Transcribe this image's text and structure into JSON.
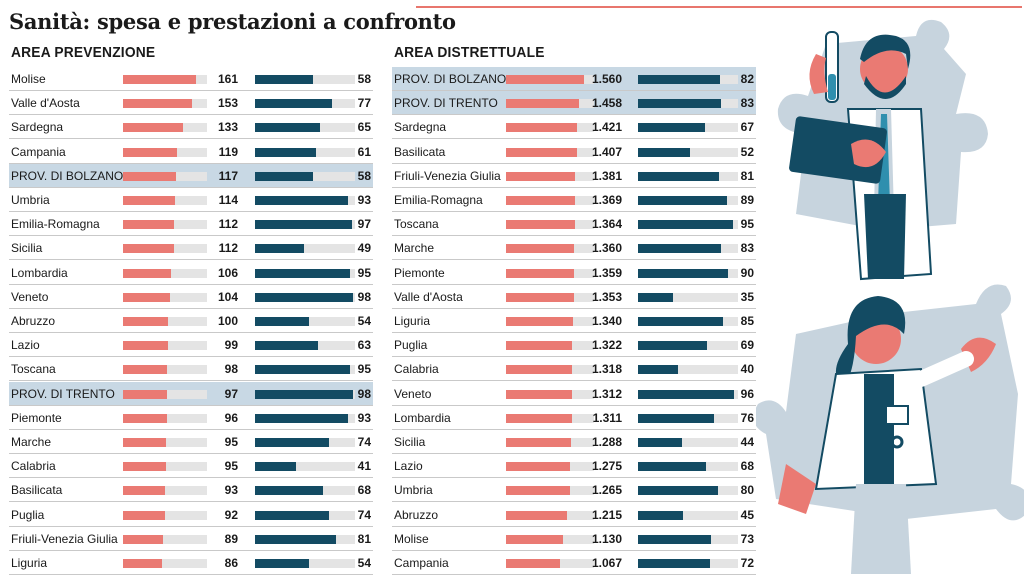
{
  "title": "Sanità: spesa e prestazioni a confronto",
  "colors": {
    "spesa": "#ea7a73",
    "prestazioni": "#134b63",
    "track": "#e4e4e4",
    "highlight": "#c8d8e4"
  },
  "chart_data": [
    {
      "type": "bar",
      "title": "AREA PREVENZIONE",
      "categories": [
        "Molise",
        "Valle d'Aosta",
        "Sardegna",
        "Campania",
        "PROV. DI BOLZANO",
        "Umbria",
        "Emilia-Romagna",
        "Sicilia",
        "Lombardia",
        "Veneto",
        "Abruzzo",
        "Lazio",
        "Toscana",
        "PROV. DI TRENTO",
        "Piemonte",
        "Marche",
        "Calabria",
        "Basilicata",
        "Puglia",
        "Friuli-Venezia Giulia",
        "Liguria"
      ],
      "highlighted": [
        "PROV. DI BOLZANO",
        "PROV. DI TRENTO"
      ],
      "series": [
        {
          "values": [
            161,
            153,
            133,
            119,
            117,
            114,
            112,
            112,
            106,
            104,
            100,
            99,
            98,
            97,
            96,
            95,
            95,
            93,
            92,
            89,
            86
          ],
          "labels": [
            "161",
            "153",
            "133",
            "119",
            "117",
            "114",
            "112",
            "112",
            "106",
            "104",
            "100",
            "99",
            "98",
            "97",
            "96",
            "95",
            "95",
            "93",
            "92",
            "89",
            "86"
          ],
          "max": 185
        },
        {
          "values": [
            58,
            77,
            65,
            61,
            58,
            93,
            97,
            49,
            95,
            98,
            54,
            63,
            95,
            98,
            93,
            74,
            41,
            68,
            74,
            81,
            54
          ],
          "labels": [
            "58",
            "77",
            "65",
            "61",
            "58",
            "93",
            "97",
            "49",
            "95",
            "98",
            "54",
            "63",
            "95",
            "98",
            "93",
            "74",
            "41",
            "68",
            "74",
            "81",
            "54"
          ],
          "max": 100
        }
      ]
    },
    {
      "type": "bar",
      "title": "AREA DISTRETTUALE",
      "categories": [
        "PROV. DI BOLZANO",
        "PROV. DI TRENTO",
        "Sardegna",
        "Basilicata",
        "Friuli-Venezia Giulia",
        "Emilia-Romagna",
        "Toscana",
        "Marche",
        "Piemonte",
        "Valle d'Aosta",
        "Liguria",
        "Puglia",
        "Calabria",
        "Veneto",
        "Lombardia",
        "Sicilia",
        "Lazio",
        "Umbria",
        "Abruzzo",
        "Molise",
        "Campania"
      ],
      "highlighted": [
        "PROV. DI BOLZANO",
        "PROV. DI TRENTO"
      ],
      "series": [
        {
          "values": [
            1560,
            1458,
            1421,
            1407,
            1381,
            1369,
            1364,
            1360,
            1359,
            1353,
            1340,
            1322,
            1318,
            1312,
            1311,
            1288,
            1275,
            1265,
            1215,
            1130,
            1067
          ],
          "labels": [
            "1.560",
            "1.458",
            "1.421",
            "1.407",
            "1.381",
            "1.369",
            "1.364",
            "1.360",
            "1.359",
            "1.353",
            "1.340",
            "1.322",
            "1.318",
            "1.312",
            "1.311",
            "1.288",
            "1.275",
            "1.265",
            "1.215",
            "1.130",
            "1.067"
          ],
          "max": 1750
        },
        {
          "values": [
            82,
            83,
            67,
            52,
            81,
            89,
            95,
            83,
            90,
            35,
            85,
            69,
            40,
            96,
            76,
            44,
            68,
            80,
            45,
            73,
            72
          ],
          "labels": [
            "82",
            "83",
            "67",
            "52",
            "81",
            "89",
            "95",
            "83",
            "90",
            "35",
            "85",
            "69",
            "40",
            "96",
            "76",
            "44",
            "68",
            "80",
            "45",
            "73",
            "72"
          ],
          "max": 100
        }
      ]
    }
  ]
}
